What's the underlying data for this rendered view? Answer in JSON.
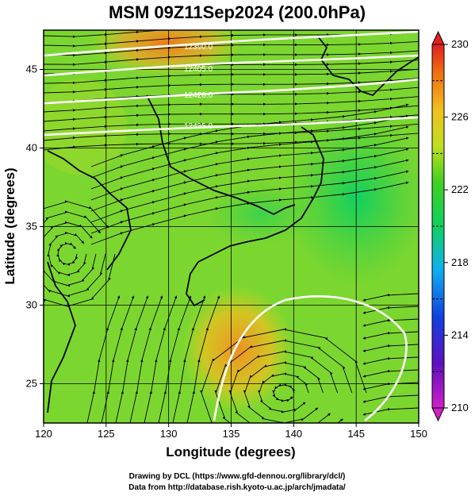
{
  "title": "MSM 09Z11Sep2024 (200.0hPa)",
  "x_axis": {
    "label": "Longitude (degrees)",
    "range": [
      120,
      150
    ],
    "ticks": [
      "120",
      "125",
      "130",
      "135",
      "140",
      "145",
      "150"
    ]
  },
  "y_axis": {
    "label": "Latitude  (degrees)",
    "range": [
      22.5,
      47.5
    ],
    "ticks": [
      "25",
      "30",
      "35",
      "40",
      "45"
    ]
  },
  "colorbar": {
    "range": [
      210,
      230
    ],
    "labels": [
      "210",
      "214",
      "218",
      "222",
      "226",
      "230"
    ]
  },
  "contour_labels": [
    "12390.0",
    "12405.0",
    "12420.0",
    "12435.0"
  ],
  "credits": {
    "line1": "Drawing by DCL (https://www.gfd-dennou.org/library/dcl/)",
    "line2": "Data from http://database.rish.kyoto-u.ac.jp/arch/jmadata/"
  },
  "colors": {
    "cold": "#d020c8",
    "mid": "#20d040",
    "warm": "#f08a10",
    "hot": "#e02020"
  }
}
